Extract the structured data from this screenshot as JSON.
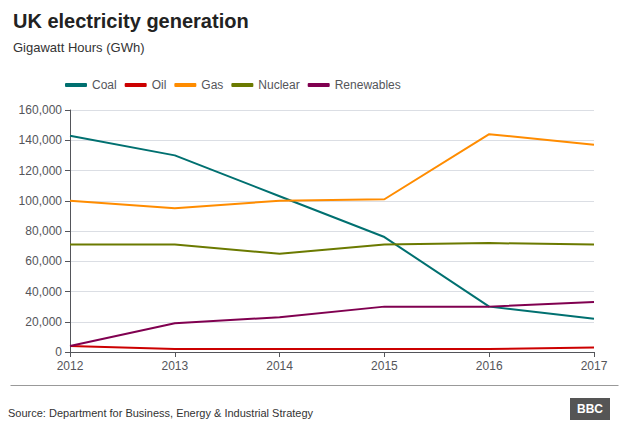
{
  "chart_data": {
    "type": "line",
    "title": "UK electricity generation",
    "subtitle": "Gigawatt Hours (GWh)",
    "annotations": [
      "Source: Department for Business, Energy & Industrial Strategy",
      "BBC"
    ],
    "x": [
      2012,
      2013,
      2014,
      2015,
      2016,
      2017
    ],
    "series": [
      {
        "name": "Coal",
        "color": "#007070",
        "values": [
          143000,
          130000,
          103000,
          76000,
          30000,
          22000
        ]
      },
      {
        "name": "Oil",
        "color": "#cc0000",
        "values": [
          4000,
          2000,
          2000,
          2000,
          2000,
          3000
        ]
      },
      {
        "name": "Gas",
        "color": "#ff8c00",
        "values": [
          100000,
          95000,
          100000,
          101000,
          144000,
          137000
        ]
      },
      {
        "name": "Nuclear",
        "color": "#6b7a00",
        "values": [
          71000,
          71000,
          65000,
          71000,
          72000,
          71000
        ]
      },
      {
        "name": "Renewables",
        "color": "#800050",
        "values": [
          4000,
          19000,
          23000,
          30000,
          30000,
          33000
        ]
      }
    ],
    "xlim": [
      2012,
      2017
    ],
    "xticks": [
      2012,
      2013,
      2014,
      2015,
      2016,
      2017
    ],
    "ylim": [
      0,
      160000
    ],
    "yticks": [
      0,
      {
        "value": 20000,
        "label": "20,000"
      },
      {
        "value": 40000,
        "label": "40,000"
      },
      {
        "value": 60000,
        "label": "60,000"
      },
      {
        "value": 80000,
        "label": "80,000"
      },
      {
        "value": 100000,
        "label": "100,000"
      },
      {
        "value": 120000,
        "label": "120,000"
      },
      {
        "value": 140000,
        "label": "140,000"
      },
      {
        "value": 160000,
        "label": "160,000"
      }
    ],
    "grid": true,
    "legend": "top"
  }
}
